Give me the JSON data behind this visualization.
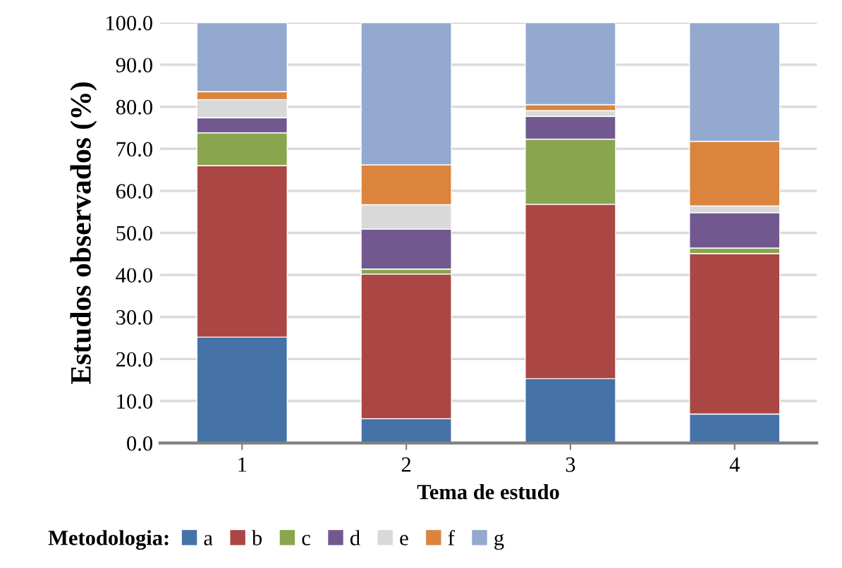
{
  "chart_data": {
    "type": "bar",
    "stacked": true,
    "xlabel": "Tema de estudo",
    "ylabel": "Estudos observados (%)",
    "legend_title": "Metodologia:",
    "legend": "bottom",
    "grid": "y",
    "categories": [
      "1",
      "2",
      "3",
      "4"
    ],
    "ylim": [
      0,
      100
    ],
    "yticks": [
      {
        "value": 0,
        "label": "0.0"
      },
      {
        "value": 10,
        "label": "10.0"
      },
      {
        "value": 20,
        "label": "20.0"
      },
      {
        "value": 30,
        "label": "30.0"
      },
      {
        "value": 40,
        "label": "40.0"
      },
      {
        "value": 50,
        "label": "50.0"
      },
      {
        "value": 60,
        "label": "60.0"
      },
      {
        "value": 70,
        "label": "70.0"
      },
      {
        "value": 80,
        "label": "80.0"
      },
      {
        "value": 90,
        "label": "90.0"
      },
      {
        "value": 100,
        "label": "100.0"
      }
    ],
    "series": [
      {
        "name": "a",
        "color": "#4572a7",
        "values": [
          25.2,
          5.8,
          15.3,
          6.9
        ]
      },
      {
        "name": "b",
        "color": "#aa4643",
        "values": [
          40.8,
          34.4,
          41.5,
          38.2
        ]
      },
      {
        "name": "c",
        "color": "#89a54e",
        "values": [
          7.8,
          1.2,
          15.5,
          1.3
        ]
      },
      {
        "name": "d",
        "color": "#71588f",
        "values": [
          3.6,
          9.5,
          5.4,
          8.4
        ]
      },
      {
        "name": "e",
        "color": "#d9d9d9",
        "values": [
          4.3,
          5.8,
          1.4,
          1.6
        ]
      },
      {
        "name": "f",
        "color": "#db843d",
        "values": [
          1.9,
          9.5,
          1.4,
          15.4
        ]
      },
      {
        "name": "g",
        "color": "#93a9cf",
        "values": [
          16.4,
          33.8,
          19.5,
          28.2
        ]
      }
    ]
  }
}
